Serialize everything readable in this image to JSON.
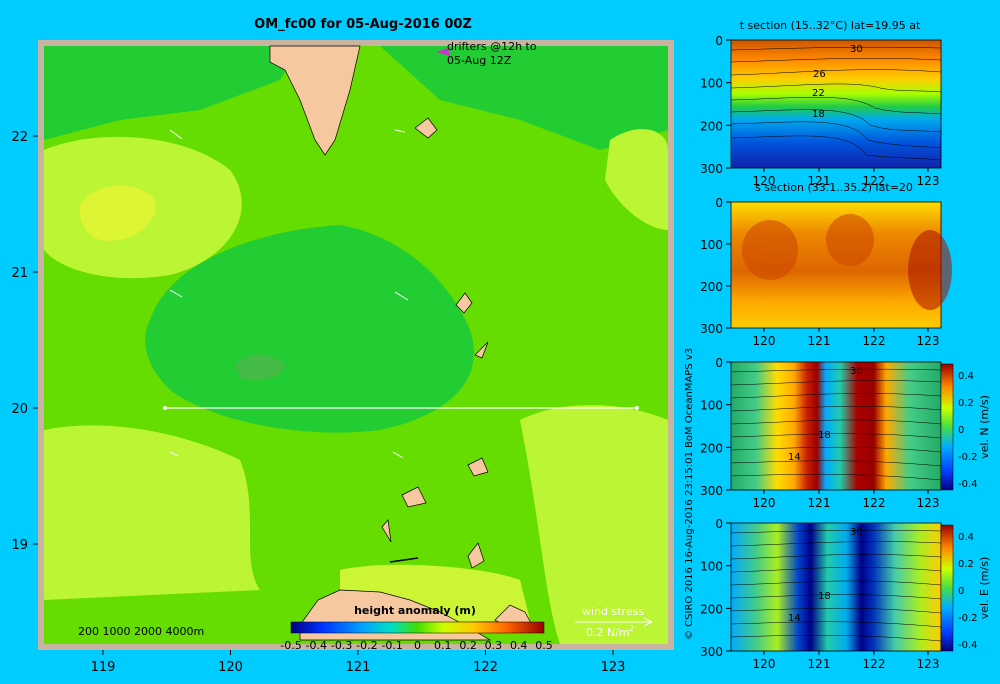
{
  "main_map": {
    "title": "OM_fc00 for 05-Aug-2016 00Z",
    "lon_ticks": [
      "119",
      "120",
      "121",
      "122",
      "123"
    ],
    "lat_ticks": [
      "22",
      "21",
      "20",
      "19"
    ],
    "drifters_label_1": "drifters @12h to",
    "drifters_label_2": "05-Aug 12Z",
    "depth_legend": "200  1000  2000  4000m",
    "wind_stress_label": "wind stress",
    "wind_stress_value": "0.2 N/m",
    "wind_stress_exp": "2",
    "colorbar_title": "height anomaly (m)",
    "colorbar_ticks": [
      "-0.5",
      "-0.4",
      "-0.3",
      "-0.2",
      "-0.1",
      "0",
      "0.1",
      "0.2",
      "0.3",
      "0.4",
      "0.5"
    ],
    "colors": {
      "background": "#00ccff",
      "land": "#f5c8a0",
      "frame": "#c8b4a0",
      "high": "#66dd00",
      "mid": "#88ee00",
      "low": "#11cc22",
      "yellow": "#ccff33"
    }
  },
  "sections": [
    {
      "title": "t section (15..32°C) lat=19.95 at",
      "y_ticks": [
        "0",
        "100",
        "200",
        "300"
      ],
      "x_ticks": [
        "120",
        "121",
        "122",
        "123"
      ],
      "contour_labels": [
        "30",
        "26",
        "22",
        "18"
      ]
    },
    {
      "title": "s section (33.1..35.2) lat=20",
      "y_ticks": [
        "0",
        "100",
        "200",
        "300"
      ],
      "x_ticks": [
        "120",
        "121",
        "122",
        "123"
      ]
    },
    {
      "y_ticks": [
        "0",
        "100",
        "200",
        "300"
      ],
      "x_ticks": [
        "120",
        "121",
        "122",
        "123"
      ],
      "contour_labels": [
        "30",
        "18",
        "14"
      ],
      "colorbar_ticks": [
        "0.4",
        "0.2",
        "0",
        "-0.2",
        "-0.4"
      ],
      "colorbar_label": "vel. N (m/s)"
    },
    {
      "y_ticks": [
        "0",
        "100",
        "200",
        "300"
      ],
      "x_ticks": [
        "120",
        "121",
        "122",
        "123"
      ],
      "contour_labels": [
        "30",
        "18",
        "14"
      ],
      "colorbar_ticks": [
        "0.4",
        "0.2",
        "0",
        "-0.2",
        "-0.4"
      ],
      "colorbar_label": "vel. E (m/s)"
    }
  ],
  "credit": "© CSIRO 2016   16-Aug-2016 23:15:01 BoM OceanMAPS v3"
}
